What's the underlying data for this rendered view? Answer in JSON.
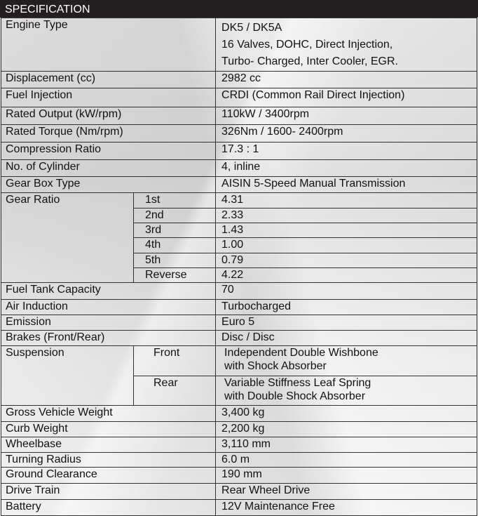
{
  "title": "SPECIFICATION",
  "rows": {
    "engine": {
      "label": "Engine Type",
      "lines": [
        "DK5 / DK5A",
        "16 Valves, DOHC, Direct Injection,",
        "Turbo- Charged, Inter Cooler, EGR."
      ]
    },
    "displacement": {
      "label": "Displacement (cc)",
      "value": "2982 cc"
    },
    "fuel_injection": {
      "label": "Fuel Injection",
      "value": "CRDI (Common Rail Direct Injection)"
    },
    "rated_output": {
      "label": "Rated Output (kW/rpm)",
      "value": "110kW  / 3400rpm"
    },
    "rated_torque": {
      "label": "Rated Torque (Nm/rpm)",
      "value": "326Nm / 1600- 2400rpm"
    },
    "compression": {
      "label": "Compression Ratio",
      "value": "17.3 : 1"
    },
    "cylinder": {
      "label": "No. of Cylinder",
      "value": "4, inline"
    },
    "gearbox": {
      "label": "Gear Box Type",
      "value": "AISIN 5-Speed Manual Transmission"
    },
    "gear_ratio": {
      "label": "Gear Ratio",
      "gears": [
        {
          "gear": "1st",
          "value": "4.31"
        },
        {
          "gear": "2nd",
          "value": "2.33"
        },
        {
          "gear": "3rd",
          "value": "1.43"
        },
        {
          "gear": "4th",
          "value": "1.00"
        },
        {
          "gear": "5th",
          "value": "0.79"
        },
        {
          "gear": "Reverse",
          "value": "4.22"
        }
      ]
    },
    "fuel_tank": {
      "label": "Fuel Tank Capacity",
      "value": "70"
    },
    "air_induction": {
      "label": "Air Induction",
      "value": "Turbocharged"
    },
    "emission": {
      "label": "Emission",
      "value": "Euro 5"
    },
    "brakes": {
      "label": "Brakes (Front/Rear)",
      "value": "Disc / Disc"
    },
    "suspension": {
      "label": "Suspension",
      "front": {
        "label": "Front",
        "lines": [
          "Independent Double Wishbone",
          "with Shock Absorber"
        ]
      },
      "rear": {
        "label": "Rear",
        "lines": [
          "Variable Stiffness Leaf Spring",
          "with Double Shock Absorber"
        ]
      }
    },
    "gvw": {
      "label": "Gross Vehicle Weight",
      "value": "3,400 kg"
    },
    "curb": {
      "label": "Curb Weight",
      "value": "2,200 kg"
    },
    "wheelbase": {
      "label": "Wheelbase",
      "value": "3,110 mm"
    },
    "turning": {
      "label": "Turning Radius",
      "value": "6.0 m"
    },
    "ground": {
      "label": "Ground Clearance",
      "value": "190 mm"
    },
    "drive": {
      "label": "Drive Train",
      "value": "Rear Wheel Drive"
    },
    "battery": {
      "label": "Battery",
      "value": "12V Maintenance Free"
    }
  }
}
